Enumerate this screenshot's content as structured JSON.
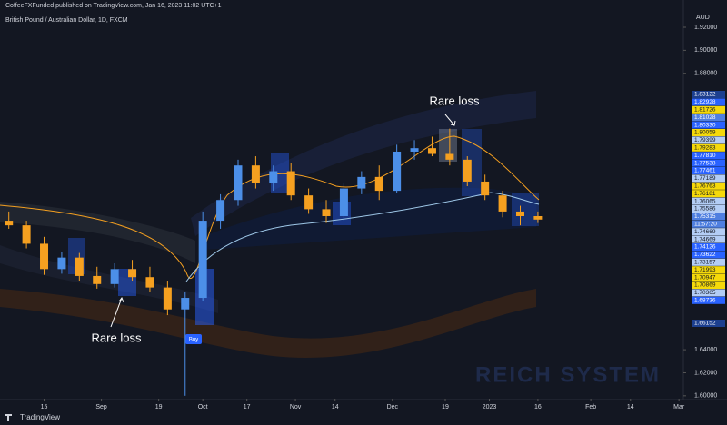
{
  "header": {
    "publisher": "CoffeeFXFunded published on TradingView.com, Jan 16, 2023 11:02 UTC+1"
  },
  "footer": {
    "brand": "TradingView"
  },
  "watermark": "REICH SYSTEM",
  "annotations": [
    "Rare loss",
    "Rare loss",
    "Buy"
  ],
  "chart_data": {
    "type": "candlestick",
    "title": "British Pound / Australian Dollar, 1D, FXCM",
    "currency": "AUD",
    "up_color": "#4c8fe8",
    "down_color": "#f5a020",
    "x": [
      -8,
      -4,
      0,
      4,
      8,
      12,
      16,
      20,
      24,
      28,
      32,
      36,
      40,
      44,
      48,
      52,
      56,
      60,
      64,
      68,
      72,
      76,
      80,
      84,
      88,
      92,
      96,
      100,
      104,
      108,
      112
    ],
    "open": [
      1.752,
      1.748,
      1.732,
      1.71,
      1.72,
      1.704,
      1.697,
      1.71,
      1.703,
      1.694,
      1.675,
      1.685,
      1.752,
      1.77,
      1.8,
      1.785,
      1.795,
      1.774,
      1.762,
      1.756,
      1.78,
      1.79,
      1.778,
      1.812,
      1.815,
      1.81,
      1.805,
      1.786,
      1.774,
      1.76,
      1.756
    ],
    "high": [
      1.76,
      1.752,
      1.738,
      1.725,
      1.724,
      1.712,
      1.715,
      1.718,
      1.712,
      1.7,
      1.69,
      1.76,
      1.775,
      1.805,
      1.808,
      1.8,
      1.802,
      1.78,
      1.77,
      1.785,
      1.795,
      1.8,
      1.818,
      1.822,
      1.825,
      1.832,
      1.808,
      1.792,
      1.778,
      1.765,
      1.76
    ],
    "low": [
      1.745,
      1.728,
      1.705,
      1.706,
      1.7,
      1.693,
      1.694,
      1.7,
      1.69,
      1.67,
      1.6,
      1.682,
      1.745,
      1.765,
      1.78,
      1.778,
      1.77,
      1.758,
      1.75,
      1.752,
      1.775,
      1.77,
      1.776,
      1.805,
      1.808,
      1.8,
      1.782,
      1.77,
      1.755,
      1.748,
      1.75
    ],
    "close": [
      1.748,
      1.732,
      1.71,
      1.72,
      1.704,
      1.697,
      1.71,
      1.703,
      1.694,
      1.675,
      1.685,
      1.752,
      1.77,
      1.8,
      1.785,
      1.795,
      1.774,
      1.762,
      1.756,
      1.78,
      1.79,
      1.778,
      1.812,
      1.815,
      1.81,
      1.805,
      1.786,
      1.774,
      1.76,
      1.756,
      1.753
    ],
    "xlim": [
      -10,
      145
    ],
    "xticks": [
      {
        "value": 0,
        "label": "15"
      },
      {
        "value": 13,
        "label": "Sep"
      },
      {
        "value": 26,
        "label": "19"
      },
      {
        "value": 36,
        "label": "Oct"
      },
      {
        "value": 46,
        "label": "17"
      },
      {
        "value": 57,
        "label": "Nov"
      },
      {
        "value": 66,
        "label": "14"
      },
      {
        "value": 79,
        "label": "Dec"
      },
      {
        "value": 91,
        "label": "19"
      },
      {
        "value": 101,
        "label": "2023"
      },
      {
        "value": 112,
        "label": "16"
      },
      {
        "value": 124,
        "label": "Feb"
      },
      {
        "value": 133,
        "label": "14"
      },
      {
        "value": 144,
        "label": "Mar"
      }
    ],
    "ylim": [
      1.5975,
      1.929
    ],
    "yticks": [
      {
        "value": 1.92,
        "label": "1.92000"
      },
      {
        "value": 1.9,
        "label": "1.90000"
      },
      {
        "value": 1.88,
        "label": "1.88000"
      },
      {
        "value": 1.64,
        "label": "1.64000"
      },
      {
        "value": 1.62,
        "label": "1.62000"
      },
      {
        "value": 1.6,
        "label": "1.60000"
      }
    ],
    "price_tags": [
      {
        "label": "1.83122",
        "color": "#1c3f8f"
      },
      {
        "label": "1.82928",
        "color": "#2962ff"
      },
      {
        "label": "1.81726",
        "color": "#f5d90a"
      },
      {
        "label": "1.81028",
        "color": "#4f7fe0"
      },
      {
        "label": "1.80330",
        "color": "#2962ff"
      },
      {
        "label": "1.80059",
        "color": "#f5d90a"
      },
      {
        "label": "1.79399",
        "color": "#b3cdf5"
      },
      {
        "label": "1.79283",
        "color": "#f5d90a"
      },
      {
        "label": "1.77810",
        "color": "#2962ff"
      },
      {
        "label": "1.77538",
        "color": "#2962ff"
      },
      {
        "label": "1.77461",
        "color": "#2962ff"
      },
      {
        "label": "1.77189",
        "color": "#b3cdf5"
      },
      {
        "label": "1.76763",
        "color": "#f5d90a"
      },
      {
        "label": "1.76181",
        "color": "#f5d90a"
      },
      {
        "label": "1.76065",
        "color": "#b3cdf5"
      },
      {
        "label": "1.75586",
        "color": "#b3cdf5"
      },
      {
        "label": "1.75315",
        "color": "#4f7fe0"
      },
      {
        "label": "11:57:20",
        "color": "#4f7fe0"
      },
      {
        "label": "1.74669",
        "color": "#b3cdf5"
      },
      {
        "label": "1.74669",
        "color": "#b3cdf5"
      },
      {
        "label": "1.74126",
        "color": "#2962ff"
      },
      {
        "label": "1.73622",
        "color": "#2962ff"
      },
      {
        "label": "1.73157",
        "color": "#b3cdf5"
      },
      {
        "label": "1.71993",
        "color": "#f5d90a"
      },
      {
        "label": "1.70947",
        "color": "#f5d90a"
      },
      {
        "label": "1.70869",
        "color": "#f5d90a"
      },
      {
        "label": "1.70365",
        "color": "#b3cdf5"
      },
      {
        "label": "1.68736",
        "color": "#2962ff"
      },
      {
        "label": "1.66152",
        "color": "#1c3f8f"
      }
    ]
  }
}
